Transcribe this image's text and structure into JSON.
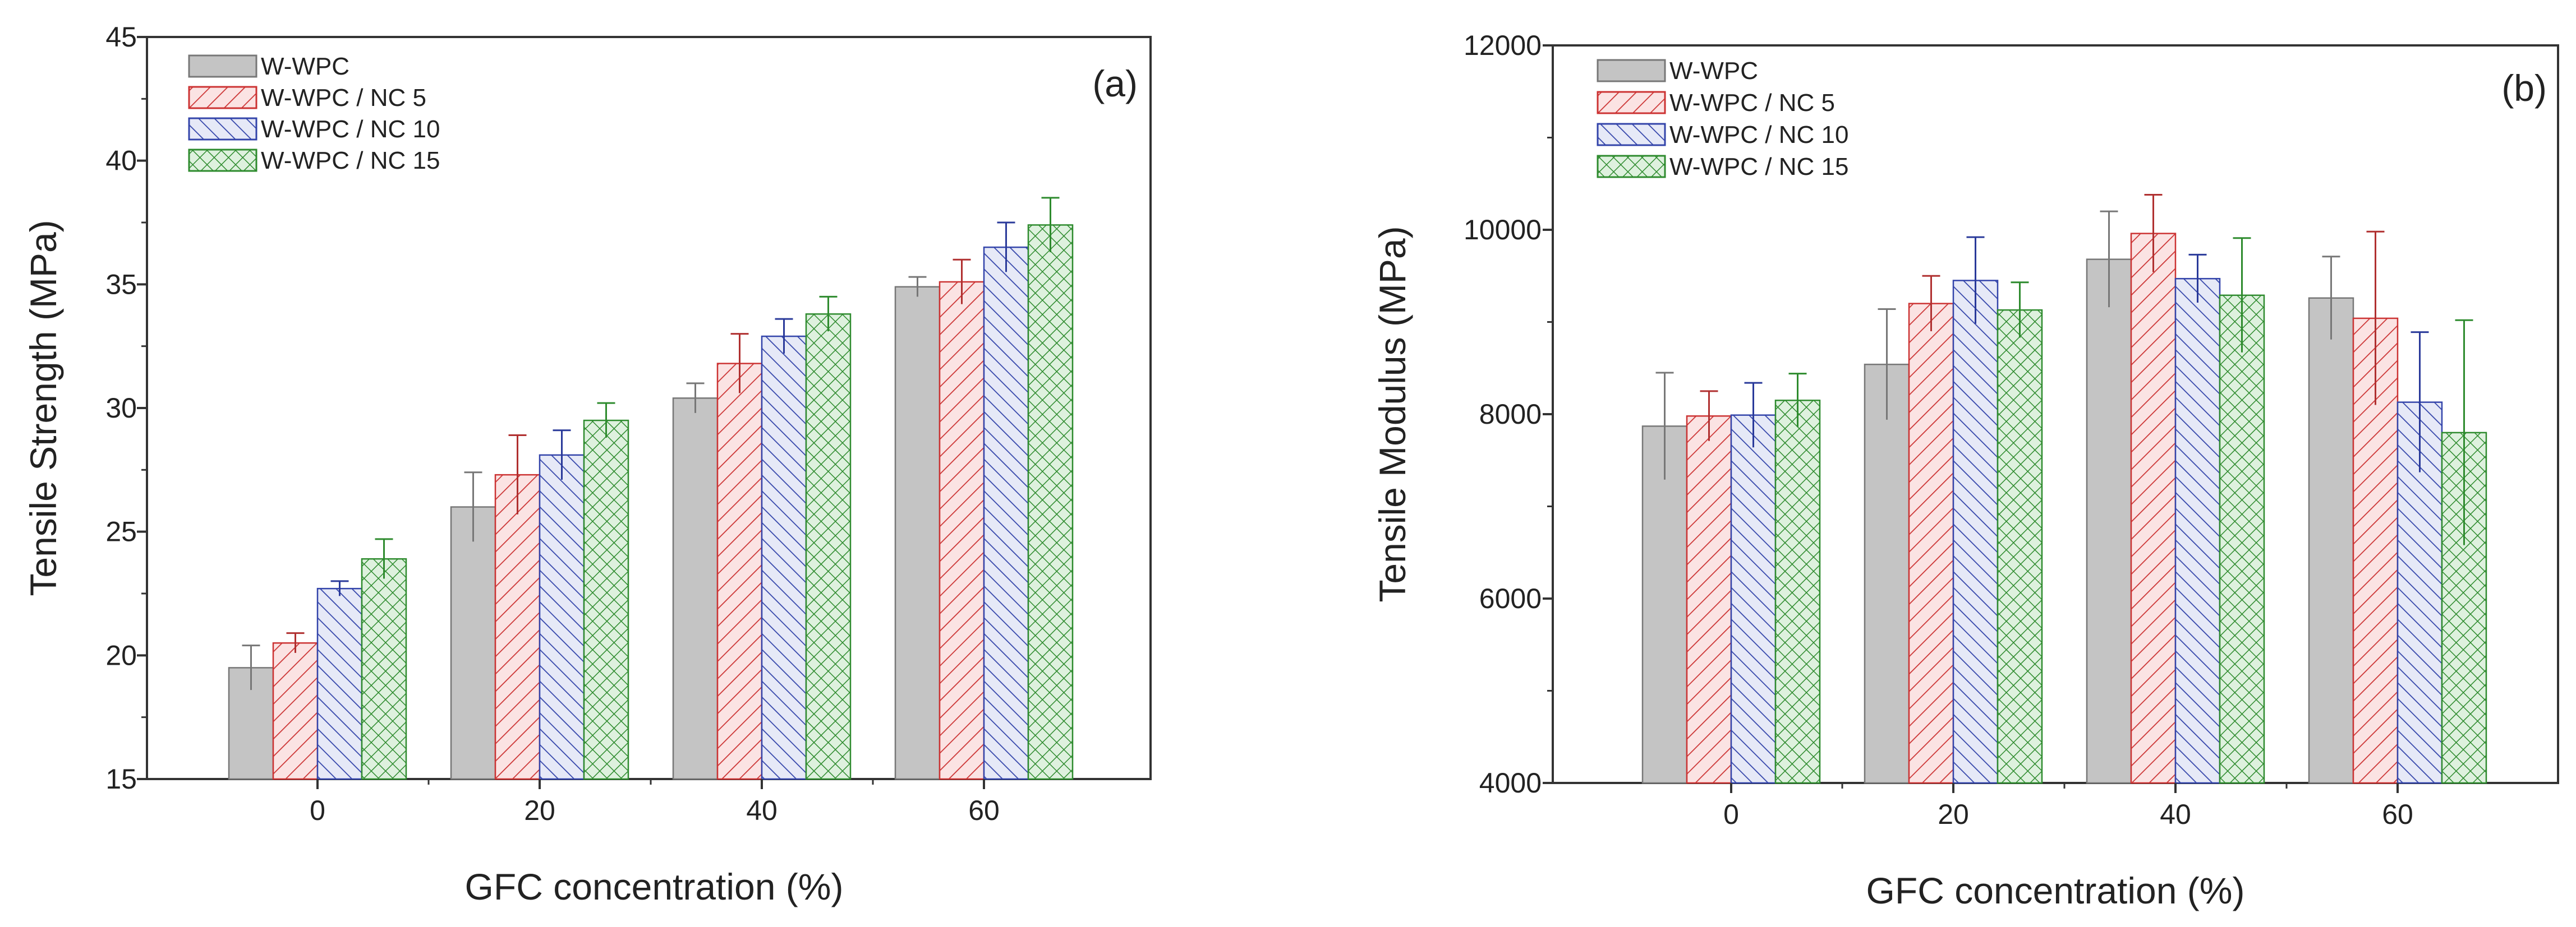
{
  "chart_data": [
    {
      "type": "bar",
      "panel_label": "(a)",
      "xlabel": "GFC concentration (%)",
      "ylabel": "Tensile Strength (MPa)",
      "ylim": [
        15,
        45
      ],
      "yticks": [
        "15",
        "20",
        "25",
        "30",
        "35",
        "40",
        "45"
      ],
      "categories": [
        "0",
        "20",
        "40",
        "60"
      ],
      "legend_position": "top-left",
      "series": [
        {
          "name": "W-WPC",
          "values": [
            19.5,
            26.0,
            30.4,
            34.9
          ],
          "errors": [
            0.9,
            1.4,
            0.6,
            0.4
          ]
        },
        {
          "name": "W-WPC / NC 5",
          "values": [
            20.5,
            27.3,
            31.8,
            35.1
          ],
          "errors": [
            0.4,
            1.6,
            1.2,
            0.9
          ]
        },
        {
          "name": "W-WPC / NC 10",
          "values": [
            22.7,
            28.1,
            32.9,
            36.5
          ],
          "errors": [
            0.3,
            1.0,
            0.7,
            1.0
          ]
        },
        {
          "name": "W-WPC / NC 15",
          "values": [
            23.9,
            29.5,
            33.8,
            37.4
          ],
          "errors": [
            0.8,
            0.7,
            0.7,
            1.1
          ]
        }
      ]
    },
    {
      "type": "bar",
      "panel_label": "(b)",
      "xlabel": "GFC concentration (%)",
      "ylabel": "Tensile Modulus (MPa)",
      "ylim": [
        4000,
        12000
      ],
      "yticks": [
        "4000",
        "6000",
        "8000",
        "10000",
        "12000"
      ],
      "categories": [
        "0",
        "20",
        "40",
        "60"
      ],
      "legend_position": "top-left",
      "series": [
        {
          "name": "W-WPC",
          "values": [
            7870,
            8540,
            9680,
            9260
          ],
          "errors": [
            580,
            600,
            520,
            450
          ]
        },
        {
          "name": "W-WPC / NC 5",
          "values": [
            7980,
            9200,
            9960,
            9040
          ],
          "errors": [
            270,
            300,
            420,
            940
          ]
        },
        {
          "name": "W-WPC / NC 10",
          "values": [
            7990,
            9450,
            9470,
            8130
          ],
          "errors": [
            350,
            470,
            260,
            760
          ]
        },
        {
          "name": "W-WPC / NC 15",
          "values": [
            8150,
            9130,
            9290,
            7800
          ],
          "errors": [
            290,
            300,
            620,
            1220
          ]
        }
      ]
    }
  ],
  "colors": {
    "series_fill": [
      "#c4c4c4",
      "#fbe3e3",
      "#e6e9f7",
      "#def1de"
    ],
    "series_stroke": [
      "#777777",
      "#cc3333",
      "#3344aa",
      "#2e8b2e"
    ],
    "error_bar": [
      "#777777",
      "#b03030",
      "#2a3a9a",
      "#2e8b2e"
    ],
    "axis": "#333333"
  }
}
